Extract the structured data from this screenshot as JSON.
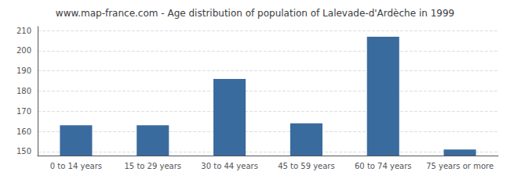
{
  "chart_data": {
    "type": "bar",
    "title": "www.map-france.com - Age distribution of population of Lalevade-d'Ardèche in 1999",
    "categories": [
      "0 to 14 years",
      "15 to 29 years",
      "30 to 44 years",
      "45 to 59 years",
      "60 to 74 years",
      "75 years or more"
    ],
    "values": [
      163,
      163,
      186,
      164,
      207,
      151
    ],
    "color": "#3a6b9e",
    "ylim": [
      148,
      212
    ],
    "yticks": [
      150,
      160,
      170,
      180,
      190,
      200,
      210
    ],
    "grid": true
  }
}
